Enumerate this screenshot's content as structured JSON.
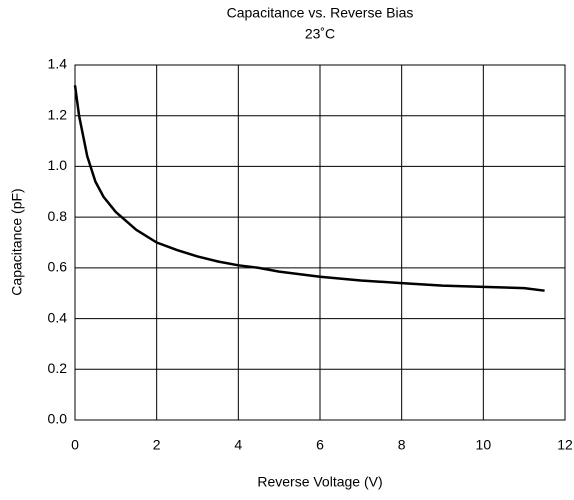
{
  "chart_data": {
    "type": "line",
    "title": "Capacitance vs. Reverse Bias",
    "subtitle": "23˚C",
    "x_label": "Reverse Voltage (V)",
    "y_label": "Capacitance (pF)",
    "x": [
      0,
      0.1,
      0.2,
      0.3,
      0.5,
      0.7,
      1,
      1.5,
      2,
      2.5,
      3,
      3.5,
      4,
      4.5,
      5,
      6,
      7,
      8,
      9,
      10,
      11,
      11.5
    ],
    "series": [
      {
        "name": "Capacitance",
        "color": "#000000",
        "values": [
          1.32,
          1.2,
          1.12,
          1.04,
          0.94,
          0.88,
          0.82,
          0.75,
          0.7,
          0.67,
          0.645,
          0.625,
          0.61,
          0.6,
          0.585,
          0.565,
          0.55,
          0.54,
          0.53,
          0.525,
          0.52,
          0.51
        ]
      }
    ],
    "xlim": [
      0,
      12
    ],
    "xticks": [
      0,
      2,
      4,
      6,
      8,
      10,
      12
    ],
    "ylim": [
      0,
      1.4
    ],
    "yticks": [
      {
        "value": 0,
        "label": "0.0"
      },
      0.2,
      0.4,
      0.6,
      0.8,
      {
        "value": 1,
        "label": "1.0"
      },
      1.2,
      1.4
    ],
    "grid": true
  }
}
